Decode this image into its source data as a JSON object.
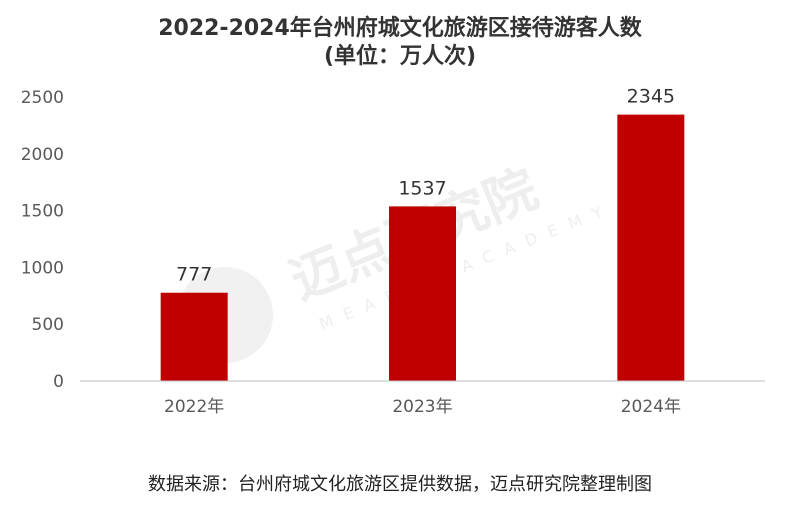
{
  "chart_data": {
    "type": "bar",
    "title": "2022-2024年台州府城文化旅游区接待游客人数",
    "subtitle": "(单位：万人次)",
    "categories": [
      "2022年",
      "2023年",
      "2024年"
    ],
    "values": [
      777,
      1537,
      2345
    ],
    "ylim": [
      0,
      2500
    ],
    "yticks": [
      0,
      500,
      1000,
      1500,
      2000,
      2500
    ],
    "grid": false,
    "bar_color": "#C00000",
    "xlabel": "",
    "ylabel": ""
  },
  "source": "数据来源：台州府城文化旅游区提供数据，迈点研究院整理制图",
  "watermark": {
    "cn": "迈点研究院",
    "en": "MEADIN ACADEMY"
  }
}
